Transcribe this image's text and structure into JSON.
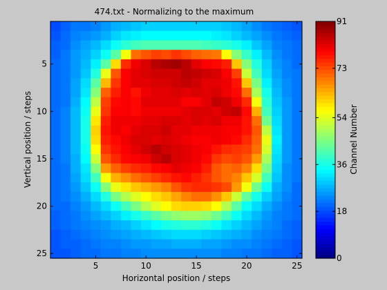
{
  "chart_data": {
    "type": "heatmap",
    "title": "474.txt - Normalizing to the maximum",
    "xlabel": "Horizontal position / steps",
    "ylabel": "Vertical position / steps",
    "xlim": [
      0.5,
      25.5
    ],
    "ylim": [
      0.5,
      25.5
    ],
    "y_direction": "reverse",
    "x_ticks": [
      5,
      10,
      15,
      20,
      25
    ],
    "y_ticks": [
      5,
      10,
      15,
      20,
      25
    ],
    "grid": false,
    "colormap": "jet",
    "colorbar": {
      "label": "Channel Number",
      "range": [
        0,
        91
      ],
      "ticks": [
        0,
        18,
        36,
        54,
        73,
        91
      ]
    },
    "matrix": [
      [
        18,
        20,
        22,
        22,
        23,
        25,
        27,
        28,
        29,
        30,
        30,
        30,
        30,
        30,
        30,
        30,
        30,
        29,
        28,
        26,
        24,
        22,
        21,
        20,
        19
      ],
      [
        19,
        21,
        23,
        24,
        25,
        27,
        30,
        32,
        33,
        34,
        34,
        34,
        34,
        34,
        34,
        34,
        33,
        32,
        30,
        28,
        26,
        24,
        22,
        21,
        20
      ],
      [
        20,
        21,
        24,
        26,
        28,
        31,
        35,
        38,
        40,
        41,
        41,
        41,
        41,
        41,
        41,
        40,
        39,
        38,
        36,
        33,
        29,
        26,
        23,
        22,
        21
      ],
      [
        20,
        22,
        25,
        27,
        30,
        35,
        42,
        56,
        70,
        72,
        74,
        73,
        75,
        73,
        71,
        70,
        69,
        57,
        46,
        39,
        33,
        28,
        24,
        22,
        21
      ],
      [
        21,
        22,
        25,
        28,
        33,
        42,
        60,
        76,
        81,
        83,
        86,
        87,
        88,
        86,
        82,
        80,
        79,
        77,
        62,
        46,
        37,
        30,
        25,
        23,
        21
      ],
      [
        21,
        22,
        25,
        29,
        37,
        55,
        72,
        80,
        82,
        83,
        84,
        84,
        84,
        86,
        85,
        84,
        83,
        80,
        74,
        52,
        40,
        31,
        26,
        23,
        22
      ],
      [
        21,
        22,
        26,
        31,
        42,
        63,
        75,
        80,
        82,
        82,
        83,
        83,
        84,
        85,
        84,
        82,
        82,
        81,
        78,
        62,
        45,
        33,
        27,
        24,
        22
      ],
      [
        21,
        22,
        26,
        32,
        46,
        71,
        77,
        80,
        78,
        81,
        82,
        82,
        83,
        82,
        83,
        82,
        83,
        81,
        79,
        70,
        49,
        36,
        28,
        24,
        22
      ],
      [
        21,
        22,
        27,
        34,
        51,
        74,
        79,
        80,
        79,
        82,
        82,
        82,
        82,
        80,
        80,
        82,
        85,
        84,
        81,
        76,
        56,
        38,
        29,
        25,
        22
      ],
      [
        21,
        23,
        28,
        35,
        55,
        75,
        80,
        80,
        79,
        81,
        81,
        81,
        81,
        82,
        83,
        83,
        82,
        84,
        85,
        79,
        64,
        40,
        30,
        25,
        22
      ],
      [
        21,
        23,
        28,
        36,
        59,
        77,
        81,
        81,
        81,
        82,
        82,
        83,
        83,
        82,
        83,
        82,
        83,
        81,
        81,
        78,
        70,
        44,
        31,
        25,
        22
      ],
      [
        21,
        23,
        28,
        36,
        61,
        78,
        81,
        80,
        82,
        83,
        83,
        84,
        82,
        82,
        81,
        81,
        81,
        80,
        80,
        78,
        72,
        51,
        32,
        25,
        22
      ],
      [
        21,
        23,
        28,
        36,
        60,
        77,
        79,
        81,
        83,
        83,
        82,
        83,
        82,
        81,
        80,
        80,
        81,
        80,
        79,
        76,
        71,
        55,
        33,
        25,
        22
      ],
      [
        21,
        23,
        28,
        35,
        57,
        75,
        78,
        80,
        82,
        84,
        86,
        84,
        83,
        82,
        81,
        80,
        78,
        76,
        75,
        74,
        70,
        53,
        32,
        25,
        22
      ],
      [
        21,
        23,
        27,
        34,
        52,
        72,
        76,
        79,
        80,
        81,
        84,
        86,
        83,
        82,
        81,
        79,
        75,
        73,
        74,
        72,
        66,
        49,
        31,
        25,
        22
      ],
      [
        21,
        22,
        27,
        32,
        46,
        66,
        71,
        74,
        76,
        77,
        79,
        80,
        82,
        81,
        80,
        77,
        72,
        70,
        71,
        68,
        60,
        45,
        30,
        24,
        22
      ],
      [
        21,
        22,
        26,
        31,
        40,
        56,
        64,
        67,
        70,
        72,
        74,
        76,
        78,
        79,
        77,
        75,
        72,
        70,
        68,
        62,
        53,
        40,
        29,
        24,
        22
      ],
      [
        21,
        22,
        25,
        29,
        35,
        46,
        55,
        59,
        62,
        64,
        66,
        68,
        72,
        75,
        76,
        76,
        75,
        73,
        66,
        56,
        44,
        35,
        27,
        24,
        21
      ],
      [
        21,
        22,
        24,
        27,
        31,
        37,
        45,
        50,
        54,
        57,
        60,
        62,
        65,
        68,
        70,
        70,
        67,
        62,
        52,
        43,
        36,
        30,
        26,
        23,
        21
      ],
      [
        21,
        21,
        23,
        25,
        28,
        31,
        35,
        40,
        45,
        50,
        54,
        57,
        60,
        61,
        61,
        60,
        57,
        50,
        42,
        35,
        31,
        27,
        24,
        22,
        21
      ],
      [
        20,
        21,
        22,
        24,
        26,
        28,
        30,
        33,
        36,
        39,
        42,
        45,
        47,
        48,
        48,
        47,
        44,
        40,
        35,
        31,
        28,
        25,
        23,
        22,
        21
      ],
      [
        20,
        21,
        22,
        23,
        24,
        25,
        27,
        28,
        30,
        32,
        34,
        36,
        37,
        38,
        38,
        37,
        35,
        32,
        30,
        28,
        26,
        24,
        23,
        21,
        20
      ],
      [
        19,
        20,
        21,
        22,
        23,
        24,
        25,
        26,
        27,
        28,
        29,
        30,
        31,
        31,
        31,
        30,
        29,
        28,
        27,
        26,
        24,
        23,
        22,
        21,
        20
      ],
      [
        19,
        20,
        20,
        21,
        22,
        23,
        23,
        24,
        25,
        25,
        26,
        26,
        27,
        27,
        27,
        26,
        26,
        25,
        24,
        24,
        23,
        22,
        21,
        20,
        19
      ],
      [
        19,
        19,
        20,
        21,
        21,
        22,
        22,
        23,
        23,
        24,
        24,
        24,
        24,
        24,
        24,
        24,
        24,
        23,
        23,
        22,
        22,
        21,
        20,
        20,
        19
      ]
    ]
  }
}
